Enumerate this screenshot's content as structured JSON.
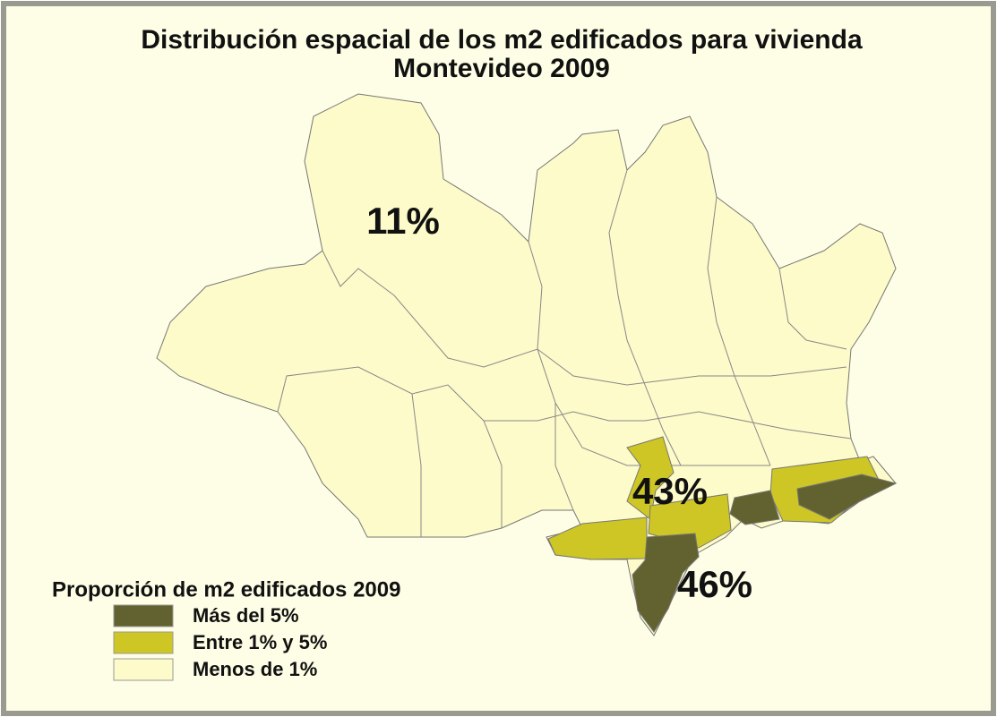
{
  "title": [
    "Distribución espacial de los m2 edificados para vivienda",
    "Montevideo 2009"
  ],
  "labels": [
    "11%",
    "43%",
    "46%"
  ],
  "legend": {
    "title": "Proporción de m2 edificados 2009",
    "items": [
      {
        "label": "Más del 5%",
        "color": "#626230"
      },
      {
        "label": "Entre 1% y 5%",
        "color": "#cdc624"
      },
      {
        "label": "Menos de 1%",
        "color": "#fdfbc9"
      }
    ]
  }
}
